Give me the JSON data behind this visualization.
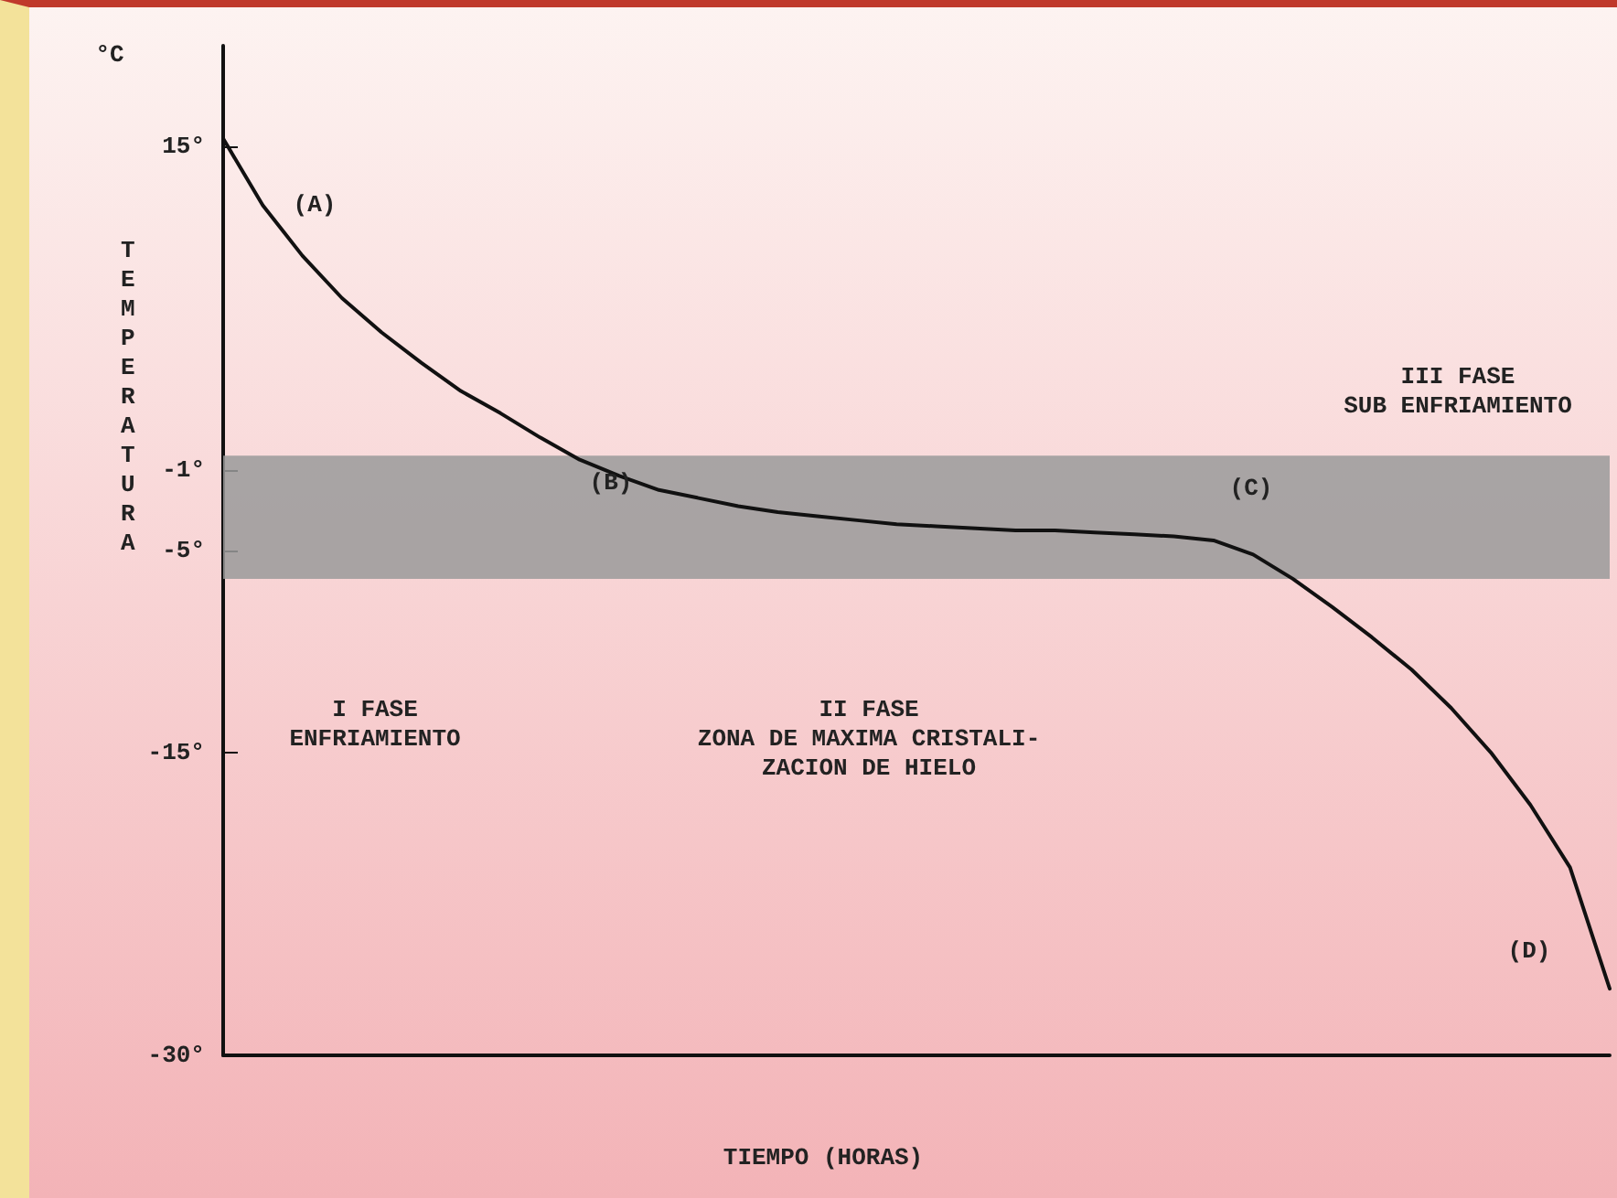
{
  "chart_data": {
    "type": "line",
    "ylabel": "TEMPERATURA",
    "xlabel": "TIEMPO (HORAS)",
    "categories": [
      null,
      null,
      null,
      null,
      null,
      null,
      null,
      null,
      null,
      null,
      null,
      null,
      null,
      null,
      null,
      null,
      null,
      null,
      null,
      null,
      null,
      null,
      null,
      null,
      null,
      null,
      null,
      null,
      null,
      null,
      null,
      null,
      null,
      null,
      null,
      null
    ],
    "series": [
      {
        "color": "#111111",
        "values": [
          15.4,
          12.1,
          9.6,
          7.5,
          5.8,
          4.3,
          2.9,
          1.8,
          0.6,
          -0.5,
          -1.3,
          -2.0,
          -2.4,
          -2.8,
          -3.1,
          -3.3,
          -3.5,
          -3.7,
          -3.8,
          -3.9,
          -4.0,
          -4.0,
          -4.1,
          -4.2,
          -4.3,
          -4.5,
          -5.2,
          -6.4,
          -7.8,
          -9.3,
          -10.9,
          -12.8,
          -15.0,
          -17.6,
          -20.7,
          -26.7
        ]
      }
    ],
    "ylim": [
      -30,
      20
    ],
    "yticks": [
      {
        "value": 15,
        "label": "15°"
      },
      {
        "value": -1,
        "label": "-1°"
      },
      {
        "value": -5,
        "label": "-5°"
      },
      {
        "value": -15,
        "label": "-15°"
      },
      {
        "value": -30,
        "label": "-30°"
      }
    ],
    "bands": [
      {
        "axis": "y",
        "from": -0.3,
        "to": -6.4,
        "color": "#9a9a9a"
      }
    ],
    "annotations": [
      "°C",
      "(A)",
      "(B)",
      "(C)",
      "(D)",
      "I FASE\nENFRIAMIENTO",
      "II FASE\nZONA DE MAXIMA CRISTALI-\nZACION DE HIELO",
      "III FASE\nSUB ENFRIAMIENTO"
    ],
    "grid": false,
    "marker": "none",
    "line_style": "solid"
  }
}
